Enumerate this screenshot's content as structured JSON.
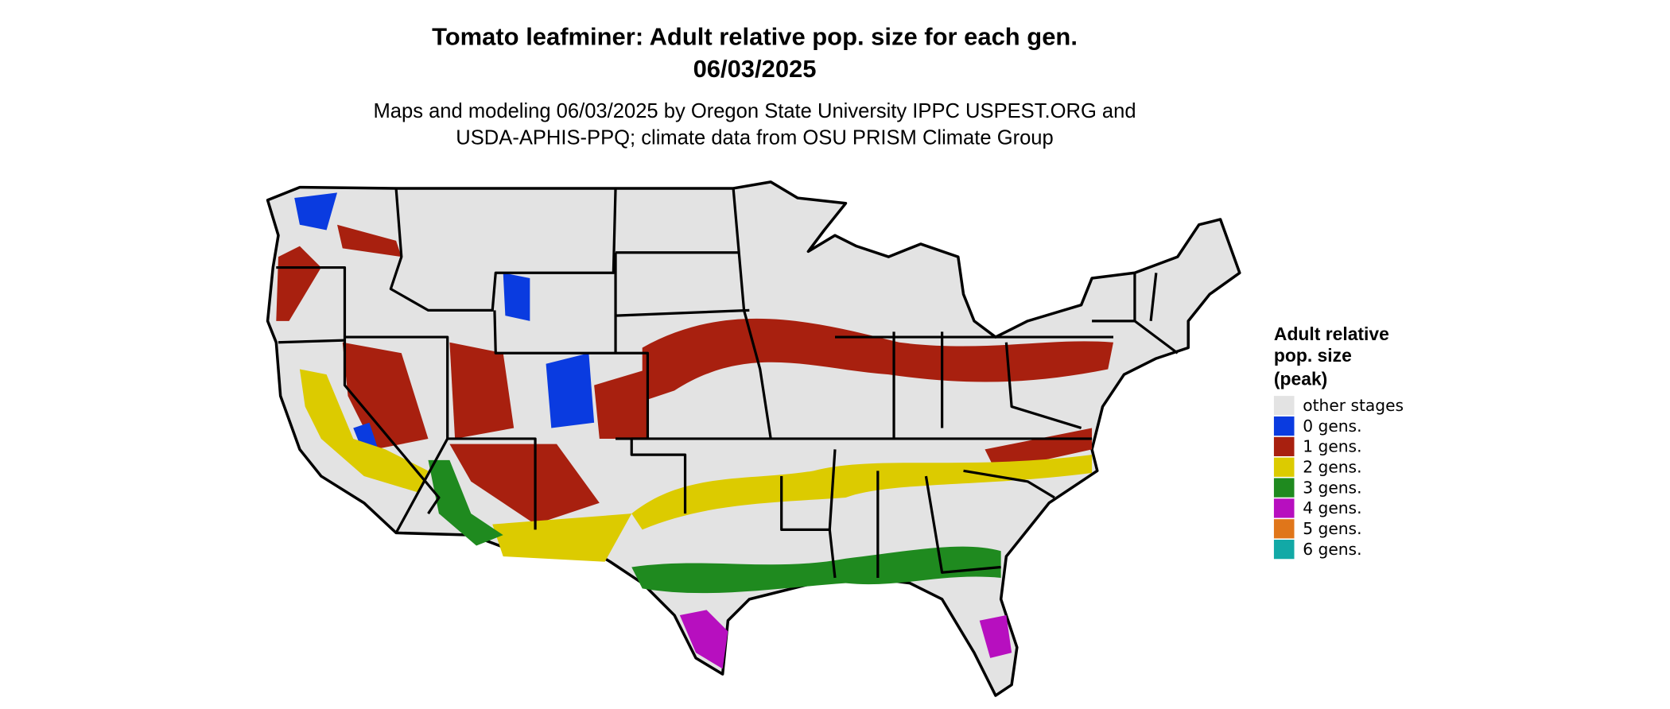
{
  "header": {
    "title": "Tomato leafminer: Adult relative pop. size for each gen.",
    "date": "06/03/2025",
    "subtitle_lines": [
      "Maps and modeling 06/03/2025 by Oregon State University IPPC USPEST.ORG and",
      "USDA-APHIS-PPQ; climate data from OSU PRISM Climate Group"
    ]
  },
  "legend": {
    "title_lines": [
      "Adult relative",
      "pop. size",
      "(peak)"
    ],
    "items": [
      {
        "label": "other stages",
        "color": "#e3e3e3"
      },
      {
        "label": "0 gens.",
        "color": "#0a3be0"
      },
      {
        "label": "1 gens.",
        "color": "#a8200f"
      },
      {
        "label": "2 gens.",
        "color": "#dccb00"
      },
      {
        "label": "3 gens.",
        "color": "#1f8a1f"
      },
      {
        "label": "4 gens.",
        "color": "#b70fbf"
      },
      {
        "label": "5 gens.",
        "color": "#e0761a"
      },
      {
        "label": "6 gens.",
        "color": "#12a9a6"
      }
    ]
  }
}
